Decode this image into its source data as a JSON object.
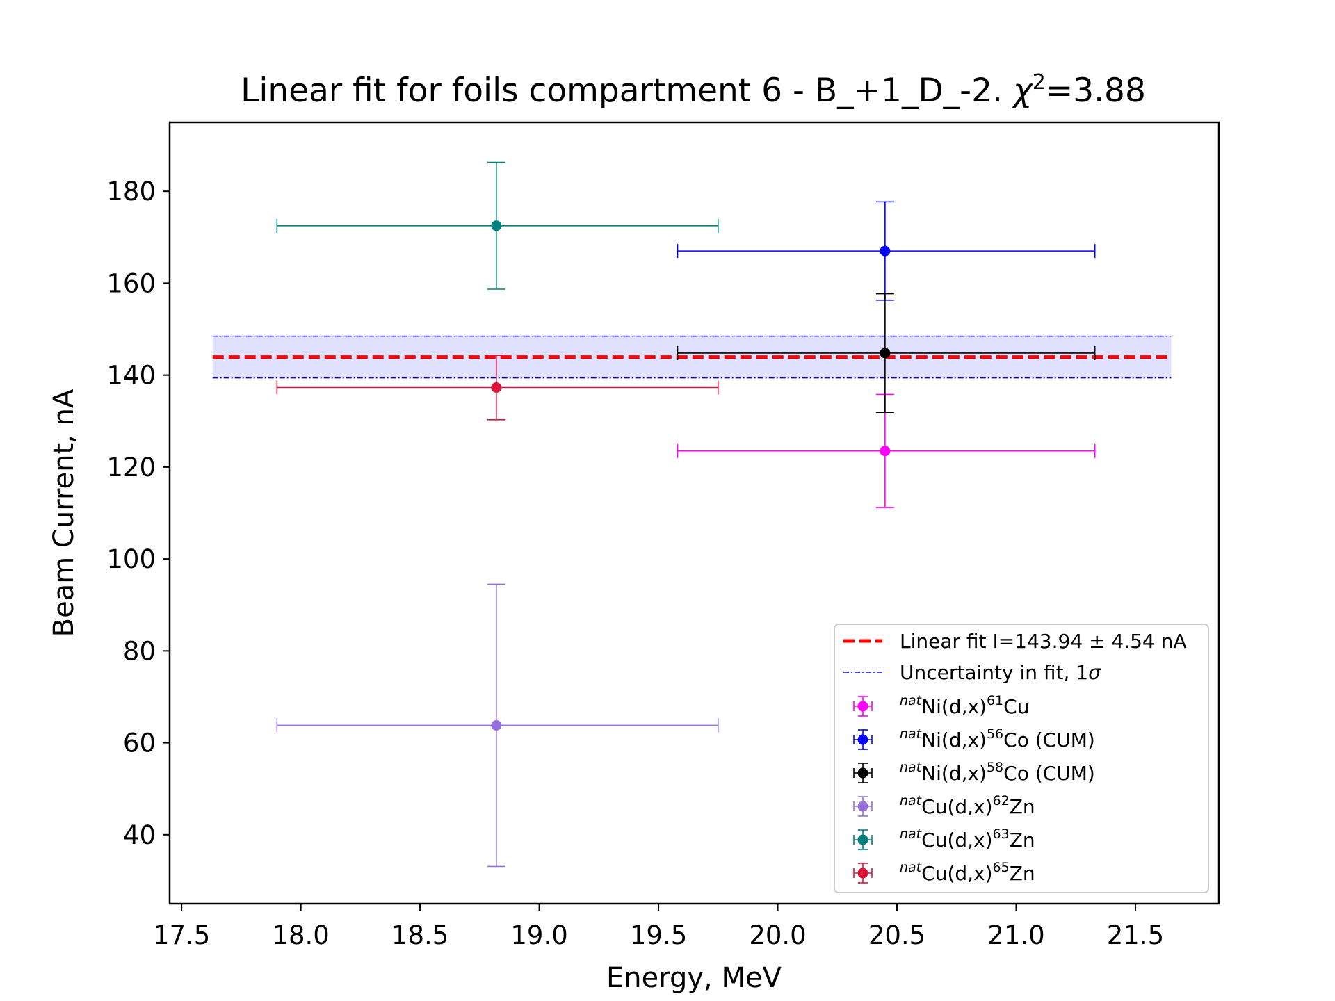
{
  "chart_data": {
    "type": "scatter",
    "title": "Linear fit for foils compartment 6 - B_+1_D_-2. χ²=3.88",
    "title_main": "Linear fit for foils compartment 6 - B_+1_D_-2. ",
    "title_chi": "χ",
    "title_sup": "2",
    "title_value": "=3.88",
    "xlabel": "Energy, MeV",
    "ylabel": "Beam Current, nA",
    "xlim": [
      17.45,
      21.85
    ],
    "ylim": [
      25,
      195
    ],
    "x_ticks": [
      17.5,
      18.0,
      18.5,
      19.0,
      19.5,
      20.0,
      20.5,
      21.0,
      21.5
    ],
    "x_tick_labels": [
      "17.5",
      "18.0",
      "18.5",
      "19.0",
      "19.5",
      "20.0",
      "20.5",
      "21.0",
      "21.5"
    ],
    "y_ticks": [
      40,
      60,
      80,
      100,
      120,
      140,
      160,
      180
    ],
    "y_tick_labels": [
      "40",
      "60",
      "80",
      "100",
      "120",
      "140",
      "160",
      "180"
    ],
    "grid": false,
    "legend_position": "lower-right",
    "fit": {
      "label": "Linear fit I=143.94 ± 4.54 nA",
      "value": 143.94,
      "uncertainty": 4.54,
      "x_range": [
        17.63,
        21.65
      ],
      "color": "#ff0000",
      "band_color": "#0000ff",
      "uncertainty_label": "Uncertainty in fit, 1σ",
      "uncertainty_label_main": "Uncertainty in fit, 1",
      "uncertainty_label_sym": "σ"
    },
    "series": [
      {
        "name": "natNi(d,x)61Cu",
        "prefix": "nat",
        "reaction": "Ni(d,x)",
        "mass": "61",
        "element": "Cu",
        "suffix": "",
        "color": "#ff00ff",
        "x": 20.45,
        "y": 123.5,
        "xerr_low": 0.87,
        "xerr_high": 0.88,
        "yerr": 12.3
      },
      {
        "name": "natNi(d,x)56Co (CUM)",
        "prefix": "nat",
        "reaction": "Ni(d,x)",
        "mass": "56",
        "element": "Co",
        "suffix": " (CUM)",
        "color": "#0000ff",
        "x": 20.45,
        "y": 167.0,
        "xerr_low": 0.87,
        "xerr_high": 0.88,
        "yerr": 10.7
      },
      {
        "name": "natNi(d,x)58Co (CUM)",
        "prefix": "nat",
        "reaction": "Ni(d,x)",
        "mass": "58",
        "element": "Co",
        "suffix": " (CUM)",
        "color": "#000000",
        "x": 20.45,
        "y": 144.8,
        "xerr_low": 0.87,
        "xerr_high": 0.88,
        "yerr": 12.9
      },
      {
        "name": "natCu(d,x)62Zn",
        "prefix": "nat",
        "reaction": "Cu(d,x)",
        "mass": "62",
        "element": "Zn",
        "suffix": "",
        "color": "#9370db",
        "x": 18.82,
        "y": 63.8,
        "xerr_low": 0.92,
        "xerr_high": 0.93,
        "yerr": 30.7
      },
      {
        "name": "natCu(d,x)63Zn",
        "prefix": "nat",
        "reaction": "Cu(d,x)",
        "mass": "63",
        "element": "Zn",
        "suffix": "",
        "color": "#008080",
        "x": 18.82,
        "y": 172.5,
        "xerr_low": 0.92,
        "xerr_high": 0.93,
        "yerr": 13.8
      },
      {
        "name": "natCu(d,x)65Zn",
        "prefix": "nat",
        "reaction": "Cu(d,x)",
        "mass": "65",
        "element": "Zn",
        "suffix": "",
        "color": "#dc143c",
        "x": 18.82,
        "y": 137.3,
        "xerr_low": 0.92,
        "xerr_high": 0.93,
        "yerr": 7.0
      }
    ]
  }
}
